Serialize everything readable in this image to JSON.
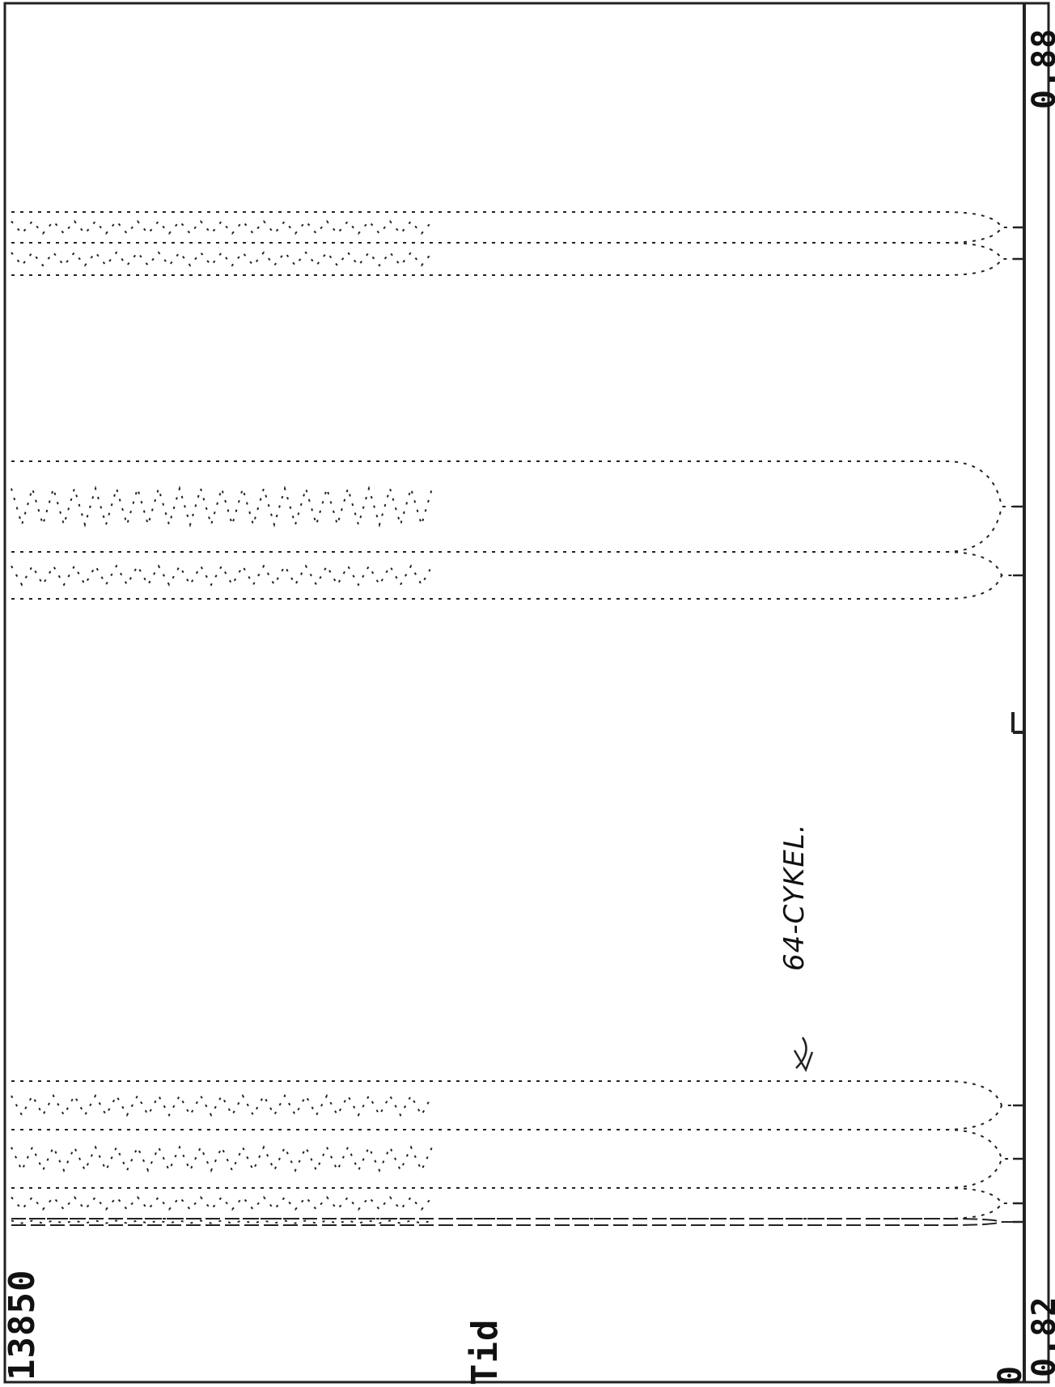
{
  "chart_data": {
    "type": "line",
    "xlabel": "Tid",
    "x_axis_start": "0",
    "x_axis_end": "13850",
    "y_axis_min_label": "0.82",
    "y_axis_max_label": "0.88",
    "annotation": "64-CYKEL.",
    "mid_marker": "U",
    "series_bands": [
      {
        "start": 1506,
        "end": 1514,
        "style": "dashed"
      },
      {
        "start": 1468,
        "end": 1506,
        "style": "dotted"
      },
      {
        "start": 1396,
        "end": 1468,
        "style": "dotted"
      },
      {
        "start": 1336,
        "end": 1396,
        "style": "dotted"
      },
      {
        "start": 682,
        "end": 740,
        "style": "dotted"
      },
      {
        "start": 570,
        "end": 682,
        "style": "dotted"
      },
      {
        "start": 300,
        "end": 340,
        "style": "dotted"
      },
      {
        "start": 262,
        "end": 300,
        "style": "dotted"
      }
    ]
  },
  "colors": {
    "ink": "#222222",
    "background": "#ffffff"
  }
}
